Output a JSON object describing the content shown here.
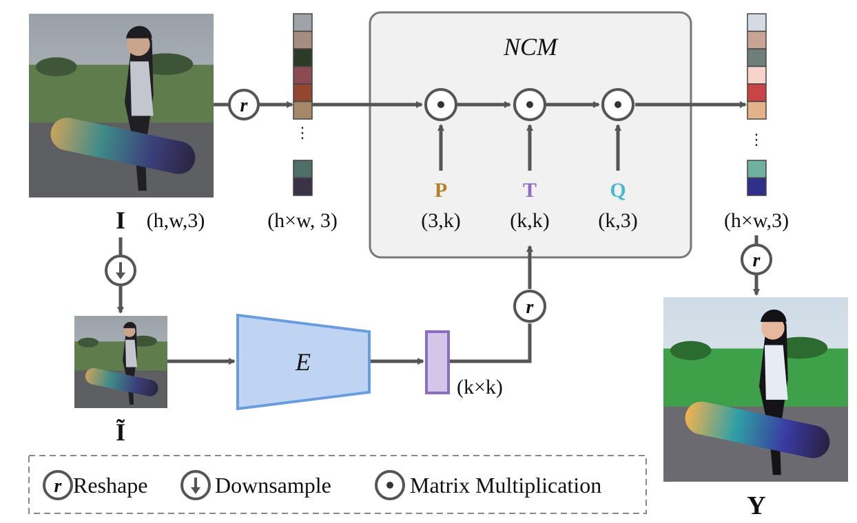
{
  "ncm": {
    "title": "NCM"
  },
  "input": {
    "symbol": "I",
    "shape": "(h,w,3)"
  },
  "downsampled": {
    "symbol": "Ĩ"
  },
  "output": {
    "symbol": "Y",
    "shape": "(h×w,3)"
  },
  "reshaped_input": {
    "shape": "(h×w, 3)"
  },
  "encoder": {
    "label": "E"
  },
  "embedding": {
    "shape": "(k×k)"
  },
  "matrices": [
    {
      "symbol": "P",
      "shape": "(3,k)",
      "color": "#B5802A"
    },
    {
      "symbol": "T",
      "shape": "(k,k)",
      "color": "#8A6CC0"
    },
    {
      "symbol": "Q",
      "shape": "(k,3)",
      "color": "#4BB8C9"
    }
  ],
  "ops": {
    "reshape": "r",
    "downsample": "⬇",
    "matmul": "•"
  },
  "legend": {
    "reshape_label": "Reshape",
    "downsample_label": "Downsample",
    "matmul_label": "Matrix Multiplication"
  },
  "colors": {
    "line": "#555555",
    "encoder_fill": "#BFD3F3",
    "encoder_stroke": "#6A9DE0",
    "embedding_fill": "#D3C6E8",
    "embedding_stroke": "#8A6CC0",
    "ncm_fill": "#F1F1F1"
  },
  "palettes": {
    "input_column": [
      "#9FA3A8",
      "#A58D80",
      "#2C3B27",
      "#8A4C52",
      "#94472F",
      "#A6876A",
      "#4E6E67",
      "#3A3347"
    ],
    "output_column": [
      "#D4DCE3",
      "#C9A493",
      "#6E7F7A",
      "#F7D3C9",
      "#C84447",
      "#E3B289",
      "#6FB0A1",
      "#2F2F8C"
    ]
  }
}
